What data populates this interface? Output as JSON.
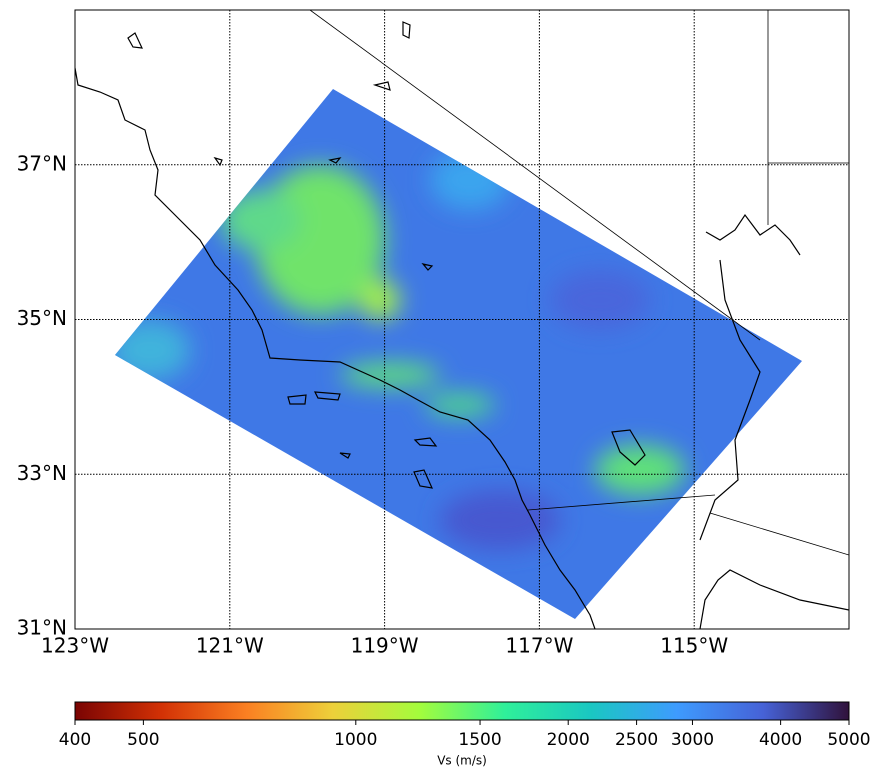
{
  "chart_data": {
    "type": "map",
    "xlim": [
      -123,
      -113
    ],
    "ylim": [
      31,
      39
    ],
    "xticks": [
      {
        "value": -123,
        "label": "123°W"
      },
      {
        "value": -121,
        "label": "121°W"
      },
      {
        "value": -119,
        "label": "119°W"
      },
      {
        "value": -117,
        "label": "117°W"
      },
      {
        "value": -115,
        "label": "115°W"
      }
    ],
    "yticks": [
      {
        "value": 31,
        "label": "31°N"
      },
      {
        "value": 33,
        "label": "33°N"
      },
      {
        "value": 35,
        "label": "35°N"
      },
      {
        "value": 37,
        "label": "37°N"
      }
    ],
    "grid": true,
    "colorbar": {
      "label": "Vs (m/s)",
      "scale": "log",
      "lim": [
        400,
        5000
      ],
      "ticks": [
        400,
        500,
        1000,
        1500,
        2000,
        2500,
        3000,
        4000,
        5000
      ],
      "colors": [
        "#7a0403",
        "#d23105",
        "#fb8022",
        "#edd03a",
        "#a4fc3c",
        "#2ff09a",
        "#1ac7c2",
        "#3e9bfe",
        "#4662d7",
        "#30123b"
      ]
    }
  }
}
